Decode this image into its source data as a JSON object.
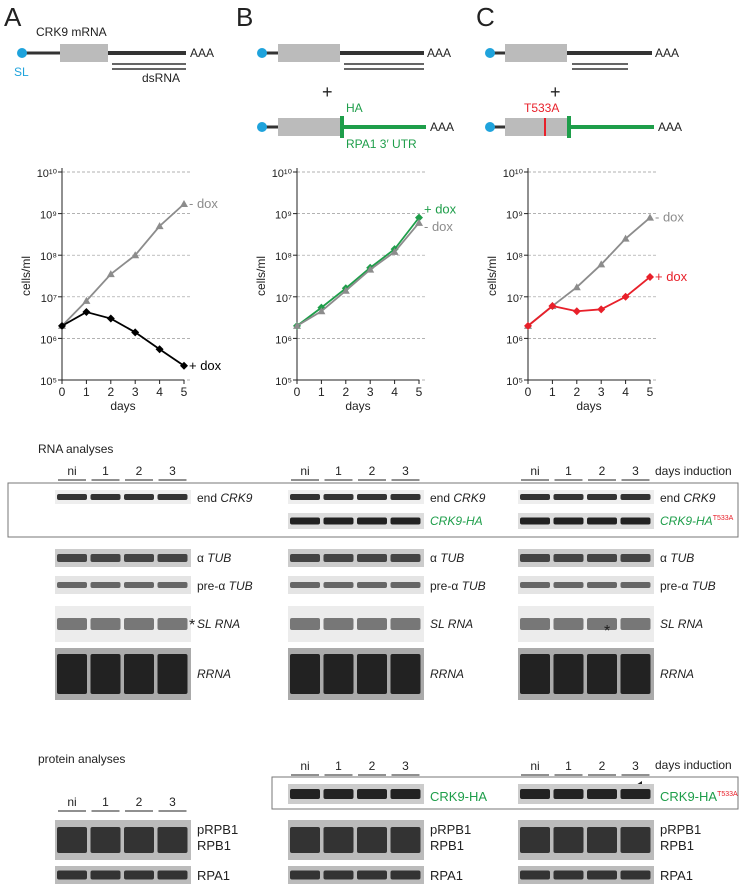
{
  "panels": [
    {
      "letter": "A",
      "diagram": {
        "mrna": "CRK9 mRNA",
        "sl": "SL",
        "polya": "AAA",
        "dsrna": "dsRNA"
      }
    },
    {
      "letter": "B",
      "diagram": {
        "polya": "AAA",
        "plus": "+",
        "tag": "HA",
        "utr": "RPA1 3′ UTR",
        "polya2": "AAA"
      }
    },
    {
      "letter": "C",
      "diagram": {
        "polya": "AAA",
        "plus": "+",
        "mutation": "T533A",
        "polya2": "AAA"
      }
    }
  ],
  "chart_data": [
    {
      "type": "line",
      "xlabel": "days",
      "ylabel": "cells/ml",
      "x": [
        0,
        1,
        2,
        3,
        4,
        5
      ],
      "xlim": [
        0,
        5
      ],
      "xticks": [
        0,
        1,
        2,
        3,
        4,
        5
      ],
      "ylim": [
        100000,
        10000000000
      ],
      "log_y": true,
      "grid": true,
      "yticks": [
        {
          "value": 100000,
          "label": "10⁵"
        },
        {
          "value": 1000000,
          "label": "10⁶"
        },
        {
          "value": 10000000,
          "label": "10⁷"
        },
        {
          "value": 100000000,
          "label": "10⁸"
        },
        {
          "value": 1000000000,
          "label": "10⁹"
        },
        {
          "value": 10000000000,
          "label": "10¹⁰"
        }
      ],
      "series": [
        {
          "name": "- dox",
          "color": "#8c8c8c",
          "marker": "triangle",
          "values": [
            2000000,
            8000000,
            35000000,
            100000000,
            500000000,
            1700000000
          ]
        },
        {
          "name": "+ dox",
          "color": "#000000",
          "marker": "diamond",
          "values": [
            2000000,
            4300000,
            3000000,
            1400000,
            550000,
            220000
          ]
        }
      ]
    },
    {
      "type": "line",
      "xlabel": "days",
      "ylabel": "cells/ml",
      "x": [
        0,
        1,
        2,
        3,
        4,
        5
      ],
      "xlim": [
        0,
        5
      ],
      "xticks": [
        0,
        1,
        2,
        3,
        4,
        5
      ],
      "ylim": [
        100000,
        10000000000
      ],
      "log_y": true,
      "grid": true,
      "yticks": [
        {
          "value": 100000,
          "label": "10⁵"
        },
        {
          "value": 1000000,
          "label": "10⁶"
        },
        {
          "value": 10000000,
          "label": "10⁷"
        },
        {
          "value": 100000000,
          "label": "10⁸"
        },
        {
          "value": 1000000000,
          "label": "10⁹"
        },
        {
          "value": 10000000000,
          "label": "10¹⁰"
        }
      ],
      "series": [
        {
          "name": "+ dox",
          "color": "#1e9e4a",
          "marker": "diamond",
          "values": [
            2000000,
            5500000,
            16000000,
            50000000,
            140000000,
            800000000
          ]
        },
        {
          "name": "- dox",
          "color": "#8c8c8c",
          "marker": "triangle",
          "values": [
            2000000,
            4500000,
            14000000,
            45000000,
            120000000,
            600000000
          ]
        }
      ]
    },
    {
      "type": "line",
      "xlabel": "days",
      "ylabel": "cells/ml",
      "x": [
        0,
        1,
        2,
        3,
        4,
        5
      ],
      "xlim": [
        0,
        5
      ],
      "xticks": [
        0,
        1,
        2,
        3,
        4,
        5
      ],
      "ylim": [
        100000,
        10000000000
      ],
      "log_y": true,
      "grid": true,
      "yticks": [
        {
          "value": 100000,
          "label": "10⁵"
        },
        {
          "value": 1000000,
          "label": "10⁶"
        },
        {
          "value": 10000000,
          "label": "10⁷"
        },
        {
          "value": 100000000,
          "label": "10⁸"
        },
        {
          "value": 1000000000,
          "label": "10⁹"
        },
        {
          "value": 10000000000,
          "label": "10¹⁰"
        }
      ],
      "series": [
        {
          "name": "- dox",
          "color": "#8c8c8c",
          "marker": "triangle",
          "values": [
            2000000,
            6000000,
            17000000,
            60000000,
            250000000,
            800000000
          ]
        },
        {
          "name": "+ dox",
          "color": "#e8202a",
          "marker": "diamond",
          "values": [
            2000000,
            6000000,
            4500000,
            5000000,
            10000000,
            30000000
          ]
        }
      ]
    }
  ],
  "rna_analyses": {
    "title": "RNA analyses",
    "lanes": [
      "ni",
      "1",
      "2",
      "3"
    ],
    "induction": "days induction",
    "end": "end ",
    "crk9": "CRK9",
    "crk9_ha": "CRK9-HA",
    "t533a": "T533A",
    "alpha": "α ",
    "pre_alpha": "pre-α ",
    "tub": "TUB",
    "sl_rna": "SL RNA",
    "rrna": "RRNA",
    "asterisk": "*"
  },
  "protein_analyses": {
    "title": "protein analyses",
    "lanes": [
      "ni",
      "1",
      "2",
      "3"
    ],
    "induction": "days induction",
    "crk9_ha": "CRK9-HA",
    "t533a": "T533A",
    "prpb1": "pRPB1",
    "rpb1": "RPB1",
    "rpa1": "RPA1"
  }
}
